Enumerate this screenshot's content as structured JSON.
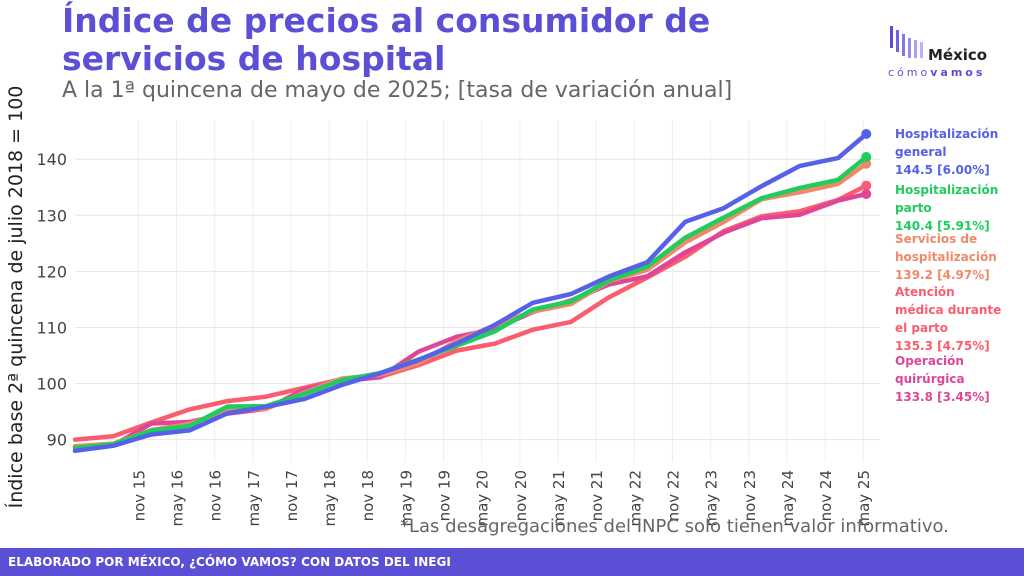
{
  "title": "Índice de precios al consumidor de servicios de hospital",
  "subtitle": "A la 1ª quincena de mayo de 2025; [tasa de variación anual]",
  "note": "*Las desagregaciones del INPC solo tienen valor informativo.",
  "footer": "ELABORADO POR MÉXICO, ¿CÓMO VAMOS? CON DATOS DEL INEGI",
  "logo": {
    "line1": "México",
    "line2a": "cómo",
    "line2b": "vamos"
  },
  "chart_data": {
    "type": "line",
    "ylabel": "Índice base 2ª quincena de julio 2018 = 100",
    "xlabel": "",
    "ylim": [
      86,
      147
    ],
    "yticks": [
      90,
      100,
      110,
      120,
      130,
      140
    ],
    "x_tick_labels": [
      "nov 15",
      "may 16",
      "nov 16",
      "may 17",
      "nov 17",
      "may 18",
      "nov 18",
      "may 19",
      "nov 19",
      "may 20",
      "nov 20",
      "may 21",
      "nov 21",
      "may 22",
      "nov 22",
      "may 23",
      "nov 23",
      "may 24",
      "nov 24",
      "may 25"
    ],
    "x_tick_years": [
      2015.83,
      2016.33,
      2016.83,
      2017.33,
      2017.83,
      2018.33,
      2018.83,
      2019.33,
      2019.83,
      2020.33,
      2020.83,
      2021.33,
      2021.83,
      2022.33,
      2022.83,
      2023.33,
      2023.83,
      2024.33,
      2024.83,
      2025.33
    ],
    "xlim": [
      2015.0,
      2025.55
    ],
    "x": [
      2015.0,
      2015.5,
      2016.0,
      2016.5,
      2017.0,
      2017.5,
      2018.0,
      2018.5,
      2019.0,
      2019.5,
      2020.0,
      2020.5,
      2021.0,
      2021.5,
      2022.0,
      2022.5,
      2023.0,
      2023.5,
      2024.0,
      2024.5,
      2025.0,
      2025.37
    ],
    "series": [
      {
        "name": "Hospitalización general",
        "value_label": "144.5 [6.00%]",
        "color": "#5660e8",
        "values": [
          88.0,
          88.5,
          91.0,
          92.0,
          94.5,
          95.5,
          97.5,
          100.0,
          101.5,
          104.0,
          107.5,
          110.5,
          114.0,
          116.0,
          119.5,
          121.5,
          128.5,
          131.5,
          135.5,
          138.5,
          140.0,
          144.5
        ]
      },
      {
        "name": "Hospitalización parto",
        "value_label": "140.4 [5.91%]",
        "color": "#1fcc5c",
        "values": [
          88.5,
          89.0,
          92.0,
          92.5,
          95.5,
          96.0,
          98.5,
          100.5,
          101.5,
          104.5,
          107.0,
          109.0,
          113.0,
          115.0,
          118.5,
          120.5,
          126.0,
          130.0,
          133.0,
          134.5,
          136.5,
          140.4
        ]
      },
      {
        "name": "Servicios de hospitalización",
        "value_label": "139.2 [4.97%]",
        "color": "#f0896a",
        "values": [
          88.8,
          89.5,
          92.0,
          92.5,
          95.0,
          95.8,
          98.5,
          100.5,
          101.5,
          104.0,
          107.5,
          110.0,
          113.0,
          114.5,
          118.0,
          120.0,
          125.5,
          129.0,
          132.5,
          134.0,
          136.0,
          139.2
        ]
      },
      {
        "name": "Atención médica durante el parto",
        "value_label": "135.3 [4.75%]",
        "color": "#fa5d6e",
        "values": [
          90.0,
          91.0,
          93.0,
          95.0,
          97.0,
          98.0,
          99.0,
          100.5,
          101.5,
          103.5,
          105.5,
          107.0,
          110.0,
          111.0,
          115.0,
          119.0,
          123.0,
          127.0,
          129.5,
          131.0,
          133.0,
          135.3
        ]
      },
      {
        "name": "Operación quirúrgica",
        "value_label": "133.8 [3.45%]",
        "color": "#e0459a",
        "values": [
          88.8,
          89.2,
          92.5,
          93.0,
          95.0,
          95.5,
          98.5,
          100.5,
          101.5,
          105.5,
          108.0,
          110.0,
          113.0,
          114.5,
          117.5,
          119.5,
          123.5,
          126.5,
          129.5,
          130.5,
          132.5,
          133.8
        ]
      }
    ],
    "legend_position": "right",
    "grid": true
  }
}
